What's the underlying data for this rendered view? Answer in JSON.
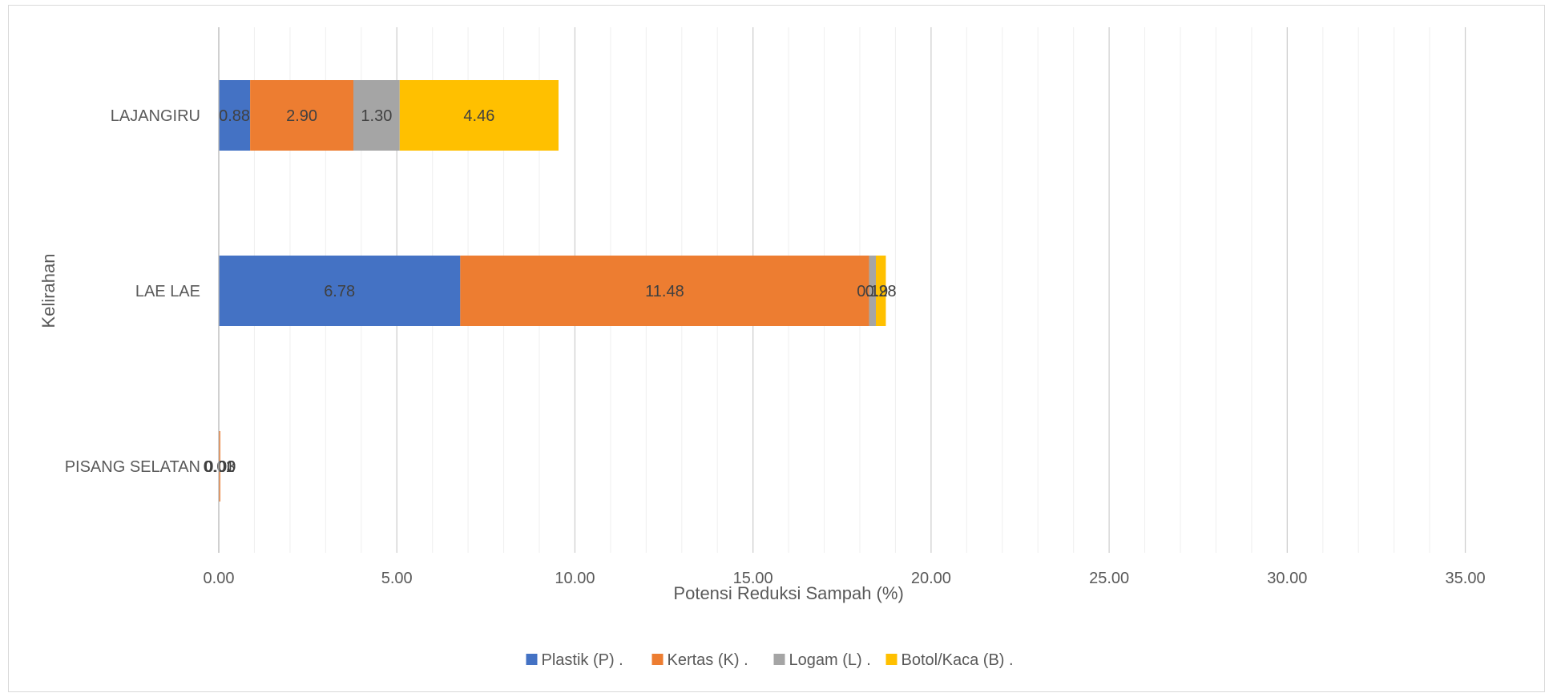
{
  "chart_data": {
    "type": "bar",
    "orientation": "horizontal",
    "stacked": true,
    "categories": [
      "LAJANGIRU",
      "LAE LAE",
      "PISANG SELATAN"
    ],
    "series": [
      {
        "name": "Plastik (P) .",
        "color": "#4472C4",
        "values": [
          0.88,
          6.78,
          0.01
        ],
        "labels": [
          "0.88",
          "6.78",
          "0.01"
        ]
      },
      {
        "name": "Kertas (K) .",
        "color": "#ED7D31",
        "values": [
          2.9,
          11.48,
          0.03
        ],
        "labels": [
          "2.90",
          "11.48",
          "0.03"
        ]
      },
      {
        "name": "Logam (L) .",
        "color": "#A5A5A5",
        "values": [
          1.3,
          0.19,
          0.0
        ],
        "labels": [
          "1.30",
          "0.19",
          "0.00"
        ]
      },
      {
        "name": "Botol/Kaca (B) .",
        "color": "#FFC000",
        "values": [
          4.46,
          0.28,
          0.0
        ],
        "labels": [
          "4.46",
          "0.28",
          "0.00"
        ]
      }
    ],
    "xlabel": "Potensi Reduksi Sampah (%)",
    "ylabel": "Kelirahan",
    "xlim": [
      0,
      36
    ],
    "x_ticks": [
      0,
      5,
      10,
      15,
      20,
      25,
      30,
      35
    ],
    "x_tick_labels": [
      "0.00",
      "5.00",
      "10.00",
      "15.00",
      "20.00",
      "25.00",
      "30.00",
      "35.00"
    ],
    "minor_grid_step": 1,
    "grid": true,
    "legend_position": "bottom"
  }
}
